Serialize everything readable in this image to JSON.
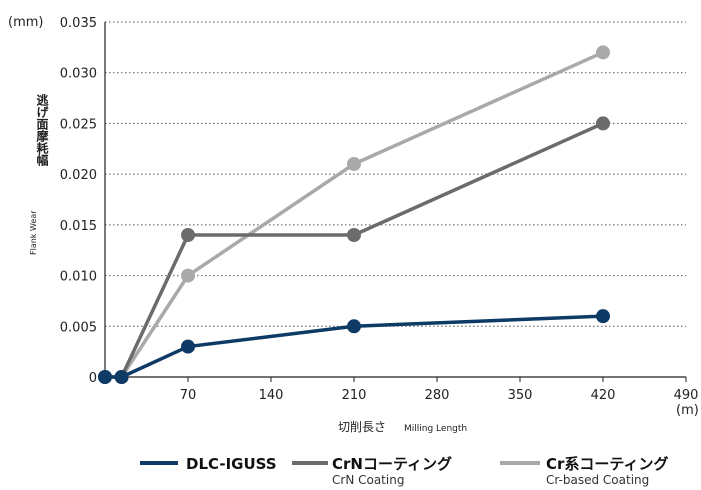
{
  "chart_data": {
    "type": "line",
    "y_unit": "(mm)",
    "x_unit": "(m)",
    "ylabel_jp": "逃げ面摩耗幅",
    "ylabel_en": "Flank Wear",
    "xlabel_jp": "切削長さ",
    "xlabel_en": "Milling Length",
    "xlim": [
      0,
      490
    ],
    "ylim": [
      0,
      0.035
    ],
    "x_ticks": [
      70,
      140,
      210,
      280,
      350,
      420,
      490
    ],
    "x_tick_labels": [
      "70",
      "140",
      "210",
      "280",
      "350",
      "420",
      "490"
    ],
    "y_ticks": [
      0,
      0.005,
      0.01,
      0.015,
      0.02,
      0.025,
      0.03,
      0.035
    ],
    "y_tick_labels": [
      "0",
      "0.005",
      "0.010",
      "0.015",
      "0.020",
      "0.025",
      "0.030",
      "0.035"
    ],
    "grid": "horizontal dotted",
    "legend_position": "bottom",
    "series": [
      {
        "name": "DLC-IGUSS",
        "subname": "",
        "color": "#0e3a66",
        "points": [
          [
            0,
            0
          ],
          [
            14,
            0
          ],
          [
            70,
            0.003
          ],
          [
            210,
            0.005
          ],
          [
            420,
            0.006
          ]
        ]
      },
      {
        "name": "CrNコーティング",
        "subname": "CrN Coating",
        "color": "#6b6b6b",
        "points": [
          [
            0,
            0
          ],
          [
            14,
            0
          ],
          [
            70,
            0.014
          ],
          [
            210,
            0.014
          ],
          [
            420,
            0.025
          ]
        ]
      },
      {
        "name": "Cr系コーティング",
        "subname": "Cr-based Coating",
        "color": "#a9a9a9",
        "points": [
          [
            0,
            0
          ],
          [
            14,
            0
          ],
          [
            70,
            0.01
          ],
          [
            210,
            0.021
          ],
          [
            420,
            0.032
          ]
        ]
      }
    ]
  }
}
